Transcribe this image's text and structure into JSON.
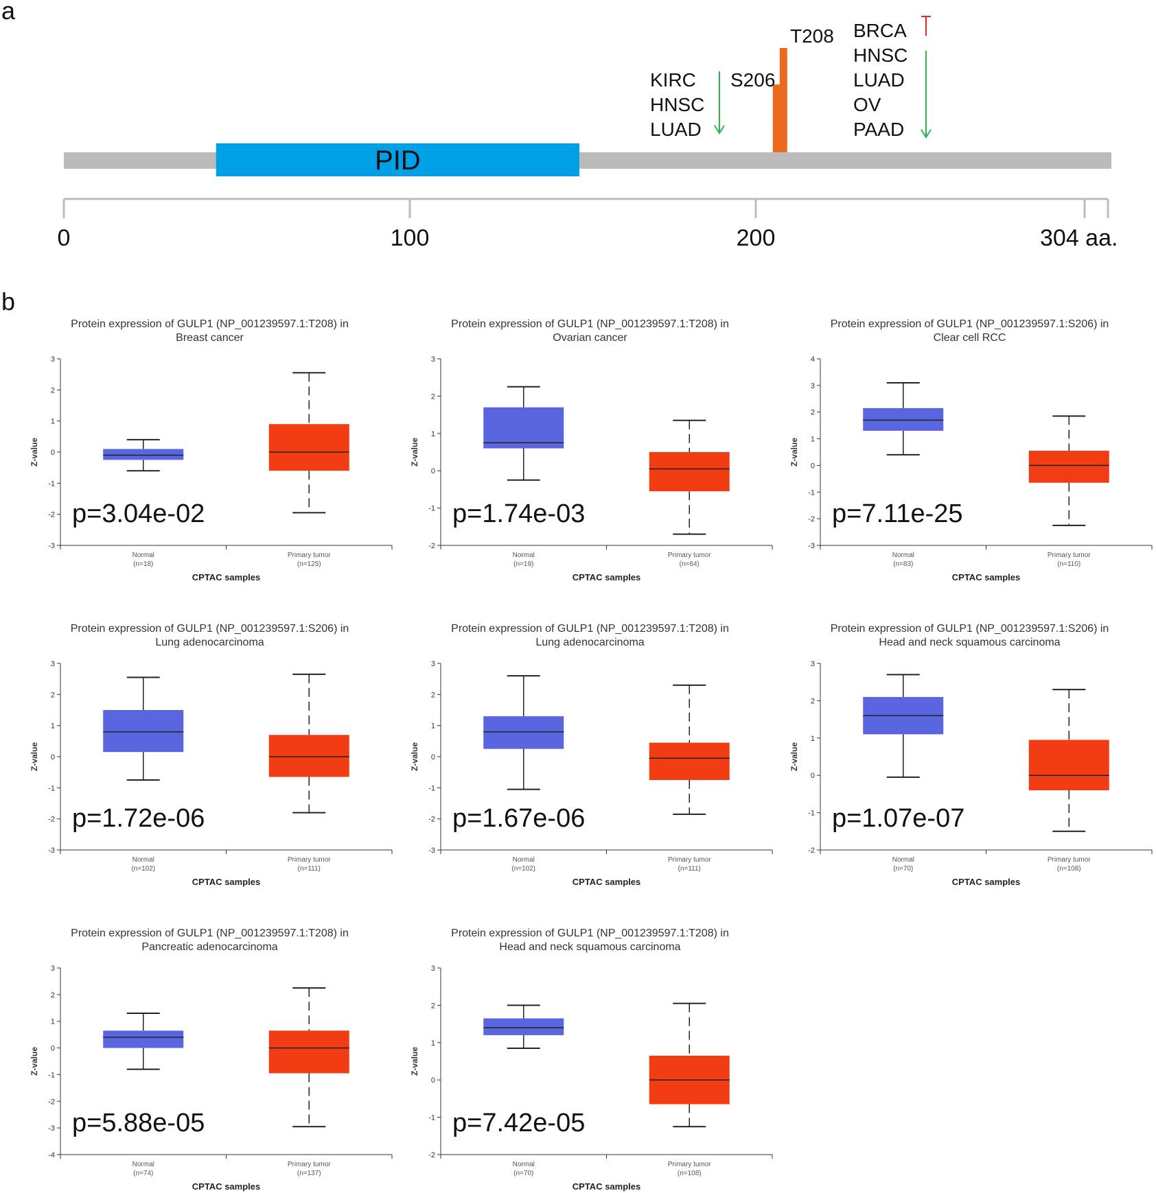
{
  "panel_a": {
    "label": "a",
    "domain_label": "PID",
    "length": 304,
    "domain_range": [
      44,
      149
    ],
    "axis_ticks": [
      0,
      100,
      200,
      304
    ],
    "axis_tick_labels": [
      "0",
      "100",
      "200",
      "304 aa."
    ],
    "sites": [
      {
        "name": "S206",
        "position": 206,
        "height": 0.65
      },
      {
        "name": "T208",
        "position": 208,
        "height": 1.0
      }
    ],
    "group_left": {
      "cancers": [
        "KIRC",
        "HNSC",
        "LUAD"
      ],
      "down_arrow_color": "#2bb24c"
    },
    "group_right": {
      "cancers": [
        "BRCA",
        "HNSC",
        "LUAD",
        "OV",
        "PAAD"
      ],
      "up_arrow_color": "#e8262a",
      "down_arrow_color": "#2bb24c"
    },
    "colors": {
      "backbone": "#bbbbbb",
      "domain": "#00a0e6",
      "site": "#ec6a1c",
      "axis": "#bbbbbb"
    }
  },
  "panel_b": {
    "label": "b",
    "x_title": "CPTAC samples",
    "y_title": "Z-value",
    "colors": {
      "normal": "#5a66e0",
      "tumor": "#f23c14",
      "line": "#222222"
    }
  },
  "chart_data": [
    {
      "type": "box",
      "title_line1": "Protein expression of GULP1 (NP_001239597.1:T208) in",
      "title_line2": "Breast cancer",
      "ylim": [
        -3,
        3
      ],
      "yticks": [
        -3,
        -2,
        -1,
        0,
        1,
        2,
        3
      ],
      "p_label": "p=3.04e-02",
      "groups": [
        {
          "name": "Normal",
          "n_label": "(n=18)",
          "whisker_low": -0.6,
          "q1": -0.25,
          "median": -0.1,
          "q3": 0.1,
          "whisker_high": 0.4
        },
        {
          "name": "Primary tumor",
          "n_label": "(n=125)",
          "whisker_low": -1.95,
          "q1": -0.6,
          "median": 0.0,
          "q3": 0.9,
          "whisker_high": 2.55
        }
      ]
    },
    {
      "type": "box",
      "title_line1": "Protein expression of GULP1 (NP_001239597.1:T208) in",
      "title_line2": "Ovarian cancer",
      "ylim": [
        -2,
        3
      ],
      "yticks": [
        -2,
        -1,
        0,
        1,
        2,
        3
      ],
      "p_label": "p=1.74e-03",
      "groups": [
        {
          "name": "Normal",
          "n_label": "(n=19)",
          "whisker_low": -0.25,
          "q1": 0.6,
          "median": 0.75,
          "q3": 1.7,
          "whisker_high": 2.25
        },
        {
          "name": "Primary tumor",
          "n_label": "(n=84)",
          "whisker_low": -1.7,
          "q1": -0.55,
          "median": 0.05,
          "q3": 0.5,
          "whisker_high": 1.35
        }
      ]
    },
    {
      "type": "box",
      "title_line1": "Protein expression of GULP1 (NP_001239597.1:S206) in",
      "title_line2": "Clear cell RCC",
      "ylim": [
        -3,
        4
      ],
      "yticks": [
        -3,
        -2,
        -1,
        0,
        1,
        2,
        3,
        4
      ],
      "p_label": "p=7.11e-25",
      "groups": [
        {
          "name": "Normal",
          "n_label": "(n=83)",
          "whisker_low": 0.4,
          "q1": 1.3,
          "median": 1.7,
          "q3": 2.15,
          "whisker_high": 3.1
        },
        {
          "name": "Primary tumor",
          "n_label": "(n=110)",
          "whisker_low": -2.25,
          "q1": -0.65,
          "median": 0.0,
          "q3": 0.55,
          "whisker_high": 1.85
        }
      ]
    },
    {
      "type": "box",
      "title_line1": "Protein expression of GULP1 (NP_001239597.1:S206) in",
      "title_line2": "Lung adenocarcinoma",
      "ylim": [
        -3,
        3
      ],
      "yticks": [
        -3,
        -2,
        -1,
        0,
        1,
        2,
        3
      ],
      "p_label": "p=1.72e-06",
      "groups": [
        {
          "name": "Normal",
          "n_label": "(n=102)",
          "whisker_low": -0.75,
          "q1": 0.15,
          "median": 0.8,
          "q3": 1.5,
          "whisker_high": 2.55
        },
        {
          "name": "Primary tumor",
          "n_label": "(n=111)",
          "whisker_low": -1.8,
          "q1": -0.65,
          "median": 0.0,
          "q3": 0.7,
          "whisker_high": 2.65
        }
      ]
    },
    {
      "type": "box",
      "title_line1": "Protein expression of GULP1 (NP_001239597.1:T208) in",
      "title_line2": "Lung adenocarcinoma",
      "ylim": [
        -3,
        3
      ],
      "yticks": [
        -3,
        -2,
        -1,
        0,
        1,
        2,
        3
      ],
      "p_label": "p=1.67e-06",
      "groups": [
        {
          "name": "Normal",
          "n_label": "(n=102)",
          "whisker_low": -1.05,
          "q1": 0.25,
          "median": 0.8,
          "q3": 1.3,
          "whisker_high": 2.6
        },
        {
          "name": "Primary tumor",
          "n_label": "(n=111)",
          "whisker_low": -1.85,
          "q1": -0.75,
          "median": -0.05,
          "q3": 0.45,
          "whisker_high": 2.3
        }
      ]
    },
    {
      "type": "box",
      "title_line1": "Protein expression of GULP1 (NP_001239597.1:S206) in",
      "title_line2": "Head and neck squamous carcinoma",
      "ylim": [
        -2,
        3
      ],
      "yticks": [
        -2,
        -1,
        0,
        1,
        2,
        3
      ],
      "p_label": "p=1.07e-07",
      "groups": [
        {
          "name": "Normal",
          "n_label": "(n=70)",
          "whisker_low": -0.05,
          "q1": 1.1,
          "median": 1.6,
          "q3": 2.1,
          "whisker_high": 2.7
        },
        {
          "name": "Primary tumor",
          "n_label": "(n=108)",
          "whisker_low": -1.5,
          "q1": -0.4,
          "median": 0.0,
          "q3": 0.95,
          "whisker_high": 2.3
        }
      ]
    },
    {
      "type": "box",
      "title_line1": "Protein expression of GULP1 (NP_001239597.1:T208) in",
      "title_line2": "Pancreatic adenocarcinoma",
      "ylim": [
        -4,
        3
      ],
      "yticks": [
        -4,
        -3,
        -2,
        -1,
        0,
        1,
        2,
        3
      ],
      "p_label": "p=5.88e-05",
      "groups": [
        {
          "name": "Normal",
          "n_label": "(n=74)",
          "whisker_low": -0.8,
          "q1": 0.0,
          "median": 0.4,
          "q3": 0.65,
          "whisker_high": 1.3
        },
        {
          "name": "Primary tumor",
          "n_label": "(n=137)",
          "whisker_low": -2.95,
          "q1": -0.95,
          "median": 0.0,
          "q3": 0.65,
          "whisker_high": 2.25
        }
      ]
    },
    {
      "type": "box",
      "title_line1": "Protein expression of GULP1 (NP_001239597.1:T208) in",
      "title_line2": "Head and neck squamous carcinoma",
      "ylim": [
        -2,
        3
      ],
      "yticks": [
        -2,
        -1,
        0,
        1,
        2,
        3
      ],
      "p_label": "p=7.42e-05",
      "groups": [
        {
          "name": "Normal",
          "n_label": "(n=70)",
          "whisker_low": 0.85,
          "q1": 1.2,
          "median": 1.4,
          "q3": 1.65,
          "whisker_high": 2.0
        },
        {
          "name": "Primary tumor",
          "n_label": "(n=108)",
          "whisker_low": -1.25,
          "q1": -0.65,
          "median": 0.0,
          "q3": 0.65,
          "whisker_high": 2.05
        }
      ]
    }
  ]
}
